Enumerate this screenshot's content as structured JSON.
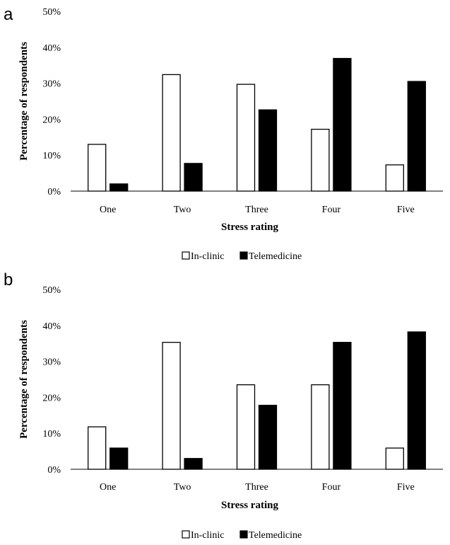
{
  "chart_data": [
    {
      "panel": "a",
      "type": "bar",
      "categories": [
        "One",
        "Two",
        "Three",
        "Four",
        "Five"
      ],
      "series": [
        {
          "name": "In-clinic",
          "values": [
            13,
            32.4,
            29.7,
            17.2,
            7.3
          ],
          "color": "#ffffff"
        },
        {
          "name": "Telemedicine",
          "values": [
            2,
            7.7,
            22.6,
            36.9,
            30.5
          ],
          "color": "#000000"
        }
      ],
      "xlabel": "Stress rating",
      "ylabel": "Percentage of respondents",
      "ylim": [
        0,
        50
      ],
      "yticks": [
        "0%",
        "10%",
        "20%",
        "30%",
        "40%",
        "50%"
      ],
      "grid": false,
      "legend_position": "bottom"
    },
    {
      "panel": "b",
      "type": "bar",
      "categories": [
        "One",
        "Two",
        "Three",
        "Four",
        "Five"
      ],
      "series": [
        {
          "name": "In-clinic",
          "values": [
            11.8,
            35.3,
            23.5,
            23.5,
            5.9
          ],
          "color": "#ffffff"
        },
        {
          "name": "Telemedicine",
          "values": [
            5.9,
            3,
            17.8,
            35.3,
            38.2
          ],
          "color": "#000000"
        }
      ],
      "xlabel": "Stress rating",
      "ylabel": "Percentage of respondents",
      "ylim": [
        0,
        50
      ],
      "yticks": [
        "0%",
        "10%",
        "20%",
        "30%",
        "40%",
        "50%"
      ],
      "grid": false,
      "legend_position": "bottom"
    }
  ]
}
